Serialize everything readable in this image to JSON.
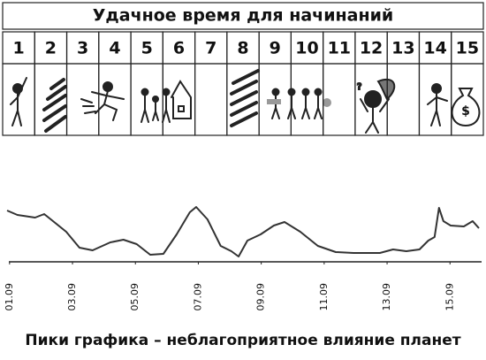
{
  "table": {
    "title": "Удачное время для начинаний",
    "columns": [
      "1",
      "2",
      "3",
      "4",
      "5",
      "6",
      "7",
      "8",
      "9",
      "10",
      "11",
      "12",
      "13",
      "14",
      "15"
    ]
  },
  "chart_data": {
    "type": "line",
    "title": "Пики графика – неблагоприятное влияние планет",
    "x": [
      0.92,
      1.25,
      1.81,
      2.1,
      2.38,
      2.8,
      3.22,
      3.64,
      4.2,
      4.62,
      5.04,
      5.47,
      5.89,
      6.31,
      6.73,
      6.93,
      7.29,
      7.71,
      8.05,
      8.28,
      8.56,
      8.98,
      9.4,
      9.74,
      10.24,
      10.8,
      11.37,
      11.93,
      12.77,
      13.19,
      13.61,
      14.03,
      14.31,
      14.51,
      14.65,
      14.79,
      15.02,
      15.44,
      15.72,
      15.92
    ],
    "values": [
      58,
      53,
      50,
      54,
      46,
      34,
      16,
      13,
      22,
      25,
      20,
      8,
      9,
      31,
      56,
      62,
      48,
      18,
      12,
      6,
      24,
      31,
      41,
      45,
      34,
      18,
      11,
      10,
      10,
      14,
      12,
      14,
      24,
      28,
      61,
      46,
      41,
      40,
      46,
      38
    ],
    "color": "#333333",
    "xlim": [
      0.78,
      16.06
    ],
    "ylim": [
      0,
      70
    ],
    "xticks": [
      {
        "value": 1,
        "label": "01.09"
      },
      {
        "value": 3,
        "label": "03.09"
      },
      {
        "value": 5,
        "label": "05.09"
      },
      {
        "value": 7,
        "label": "07.09"
      },
      {
        "value": 9,
        "label": "09.09"
      },
      {
        "value": 11,
        "label": "11.09"
      },
      {
        "value": 13,
        "label": "13.09"
      },
      {
        "value": 15,
        "label": "15.09"
      }
    ],
    "grid": false
  }
}
